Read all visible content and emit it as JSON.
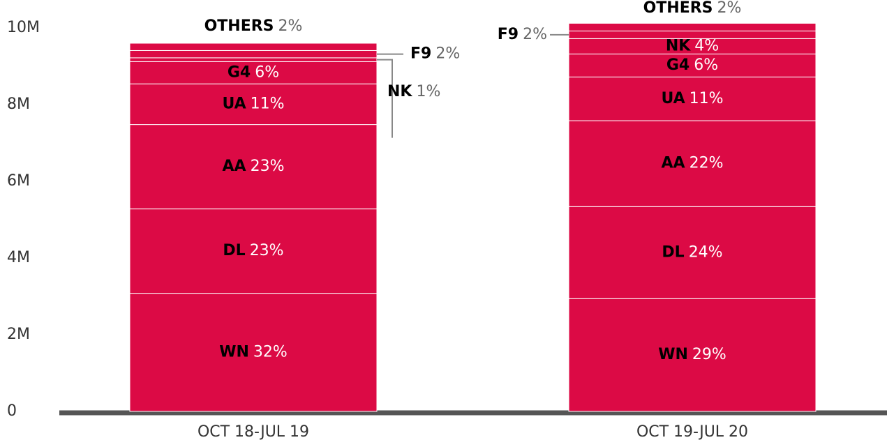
{
  "chart_data": {
    "type": "stacked_bar",
    "categories": [
      "OCT 18-JUL 19",
      "OCT 19-JUL 20"
    ],
    "color": "#dc0a45",
    "series": [
      {
        "name": "WN",
        "values": [
          3.08,
          2.94
        ],
        "value_labels": [
          "32%",
          "29%"
        ]
      },
      {
        "name": "DL",
        "values": [
          2.2,
          2.4
        ],
        "value_labels": [
          "23%",
          "24%"
        ]
      },
      {
        "name": "AA",
        "values": [
          2.2,
          2.24
        ],
        "value_labels": [
          "23%",
          "22%"
        ]
      },
      {
        "name": "UA",
        "values": [
          1.06,
          1.14
        ],
        "value_labels": [
          "11%",
          "11%"
        ]
      },
      {
        "name": "G4",
        "values": [
          0.58,
          0.6
        ],
        "value_labels": [
          "6%",
          "6%"
        ]
      },
      {
        "name": "NK",
        "values": [
          0.1,
          0.4
        ],
        "value_labels": [
          "1%",
          "4%"
        ]
      },
      {
        "name": "F9",
        "values": [
          0.19,
          0.2
        ],
        "value_labels": [
          "2%",
          "2%"
        ]
      },
      {
        "name": "OTHERS",
        "values": [
          0.19,
          0.2
        ],
        "value_labels": [
          "2%",
          "2%"
        ]
      }
    ],
    "ylim": [
      0,
      10
    ],
    "yticks": [
      0,
      {
        "value": 2,
        "label": "2M"
      },
      {
        "value": 4,
        "label": "4M"
      },
      {
        "value": 6,
        "label": "6M"
      },
      {
        "value": 8,
        "label": "8M"
      },
      {
        "value": 10,
        "label": "10M"
      }
    ]
  }
}
